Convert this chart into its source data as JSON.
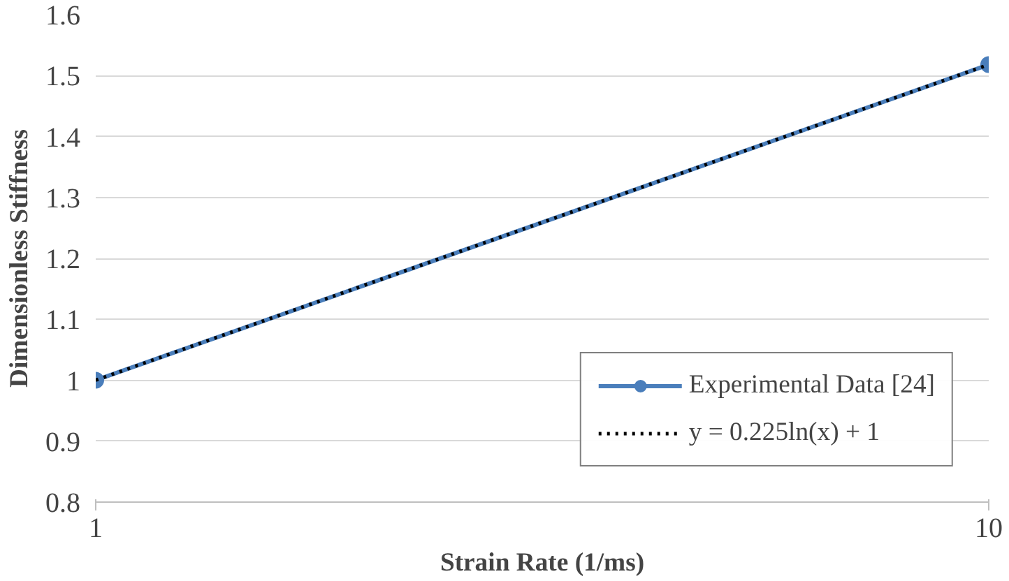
{
  "chart_data": {
    "type": "line",
    "xlabel": "Strain Rate (1/ms)",
    "ylabel": "Dimensionless Stiffness",
    "log": "x",
    "xlim": [
      1,
      10
    ],
    "xticks": [
      1,
      10
    ],
    "ylim": [
      0.8,
      1.6
    ],
    "yticks": [
      0.8,
      0.9,
      1,
      1.1,
      1.2,
      1.3,
      1.4,
      1.5,
      1.6
    ],
    "grid": "y",
    "legend": "bottom right",
    "series": [
      {
        "name": "Experimental Data [24]",
        "color": "#4a7ebb",
        "x": [
          1,
          10
        ],
        "values": [
          1,
          1.518
        ],
        "marker": "circle",
        "line_style": "solid"
      },
      {
        "name": "y = 0.225ln(x) + 1",
        "type": "line",
        "color": "#000000",
        "x": [
          1,
          2,
          5,
          10
        ],
        "values": [
          1,
          1.156,
          1.362,
          1.518
        ],
        "marker": "none",
        "line_style": "dotted"
      }
    ]
  }
}
